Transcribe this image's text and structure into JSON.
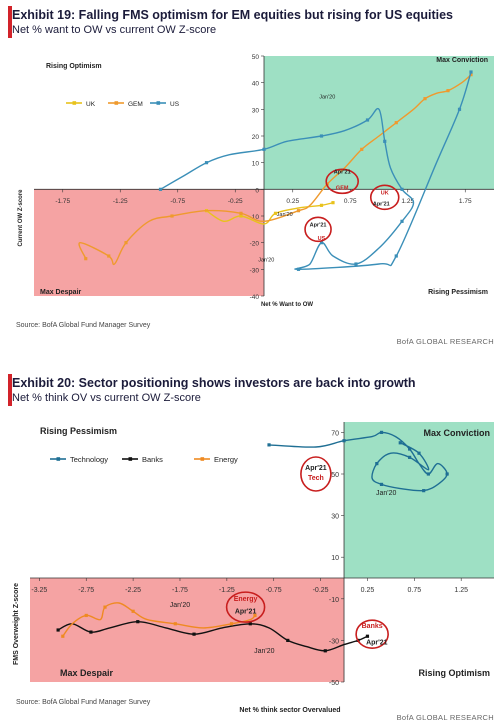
{
  "exhibit1": {
    "title": "Exhibit 19: Falling FMS optimism for EM equities but rising for US equities",
    "subtitle": "Net % want to OW vs current OW Z-score",
    "source": "Source:  BofA Global Fund Manager Survey",
    "brand": "BofA GLOBAL RESEARCH",
    "quadrants": {
      "top_left": "Rising Optimism",
      "top_right": "Max Conviction",
      "bottom_left": "Max Despair",
      "bottom_right": "Rising Pessimism"
    },
    "colors": {
      "green": "#9ee0c4",
      "red": "#f5a3a3",
      "uk": "#e8c21c",
      "gem": "#ef9a2e",
      "us": "#3b8fb8"
    },
    "chart_data": {
      "type": "line",
      "xlabel": "Net % Want to OW",
      "ylabel": "Current OW Z-score",
      "xlim": [
        -2.0,
        2.0
      ],
      "ylim": [
        -40,
        50
      ],
      "x_ticks": [
        -1.75,
        -1.25,
        -0.75,
        -0.25,
        0.25,
        0.75,
        1.25,
        1.75
      ],
      "x_tick_labels": [
        "-1.75",
        "-1.25",
        "-0.75",
        "-0.25",
        "0.25",
        "0.75",
        "1.25",
        "1.75"
      ],
      "y_ticks": [
        -40,
        -30,
        -20,
        -10,
        0,
        10,
        20,
        30,
        40,
        50
      ],
      "y_tick_labels": [
        "-40",
        "-30",
        "-20",
        "-10",
        "0",
        "10",
        "20",
        "30",
        "40",
        "50"
      ],
      "legend": [
        "UK",
        "GEM",
        "US"
      ],
      "series": [
        {
          "name": "UK",
          "color": "#e8c21c",
          "x": [
            -0.5,
            -0.35,
            -0.2,
            0.0,
            0.1,
            0.3,
            0.5,
            0.6
          ],
          "y": [
            -8,
            -12,
            -10,
            -13,
            -9,
            -7,
            -6,
            -5
          ]
        },
        {
          "name": "GEM",
          "color": "#ef9a2e",
          "x": [
            -1.55,
            -1.6,
            -1.35,
            -1.3,
            -1.2,
            -1.0,
            -0.8,
            -0.5,
            -0.2,
            0.0,
            0.3,
            0.4,
            0.55,
            0.7,
            0.85,
            1.0,
            1.15,
            1.3,
            1.4,
            1.5,
            1.6,
            1.72,
            1.8
          ],
          "y": [
            -26,
            -20,
            -25,
            -28,
            -20,
            -12,
            -10,
            -8,
            -9,
            -12,
            -8,
            -6,
            2,
            8,
            15,
            20,
            25,
            30,
            34,
            36,
            37,
            40,
            43
          ]
        },
        {
          "name": "US",
          "color": "#3b8fb8",
          "x": [
            -0.9,
            -0.7,
            -0.5,
            -0.3,
            0.0,
            0.2,
            0.5,
            0.7,
            0.9,
            1.0,
            1.05,
            1.1,
            1.2,
            1.3,
            1.2,
            1.0,
            0.8,
            0.6,
            0.5,
            0.4,
            0.3,
            1.0,
            1.15,
            1.5,
            1.7,
            1.8
          ],
          "y": [
            0,
            5,
            10,
            13,
            15,
            18,
            20,
            22,
            26,
            30,
            18,
            8,
            0,
            -5,
            -12,
            -22,
            -28,
            -25,
            -20,
            -28,
            -30,
            -28,
            -25,
            10,
            30,
            44
          ]
        }
      ],
      "annotations": [
        {
          "text": "Jan'20",
          "x": 0.55,
          "y": 34
        },
        {
          "text": "Apr'21",
          "x": 0.68,
          "y": 6
        },
        {
          "text": "GEM",
          "x": 0.68,
          "y": 0
        },
        {
          "text": "Jan'20",
          "x": 0.18,
          "y": -10
        },
        {
          "text": "Apr'21",
          "x": 0.47,
          "y": -14
        },
        {
          "text": "US",
          "x": 0.5,
          "y": -19
        },
        {
          "text": "UK",
          "x": 1.05,
          "y": -2
        },
        {
          "text": "Apr'21",
          "x": 1.02,
          "y": -6
        },
        {
          "text": "Jan'20",
          "x": 0.02,
          "y": -27
        }
      ]
    }
  },
  "exhibit2": {
    "title": "Exhibit 20: Sector positioning shows investors are back into growth",
    "subtitle": "Net % think OV vs current OW Z-score",
    "source": "Source:  BofA Global Fund Manager Survey",
    "brand": "BofA GLOBAL RESEARCH",
    "quadrants": {
      "top_left": "Rising Pessimism",
      "top_right": "Max Conviction",
      "bottom_left": "Max Despair",
      "bottom_right": "Rising Optimism"
    },
    "colors": {
      "green": "#9ee0c4",
      "red": "#f5a3a3",
      "technology": "#1f6f94",
      "banks": "#111111",
      "energy": "#ef8a22"
    },
    "chart_data": {
      "type": "line",
      "xlabel": "Net % think sector Overvalued",
      "ylabel": "FMS Overweight Z-score",
      "xlim": [
        -3.35,
        1.6
      ],
      "ylim": [
        -50,
        75
      ],
      "x_ticks": [
        -3.25,
        -2.75,
        -2.25,
        -1.75,
        -1.25,
        -0.75,
        -0.25,
        0.25,
        0.75,
        1.25
      ],
      "x_tick_labels": [
        "-3.25",
        "-2.75",
        "-2.25",
        "-1.75",
        "-1.25",
        "-0.75",
        "-0.25",
        "0.25",
        "0.75",
        "1.25"
      ],
      "y_ticks": [
        -50,
        -30,
        -10,
        10,
        30,
        50,
        70
      ],
      "y_tick_labels": [
        "-50",
        "-30",
        "-10",
        "10",
        "30",
        "50",
        "70"
      ],
      "legend": [
        "Technology",
        "Banks",
        "Energy"
      ],
      "series": [
        {
          "name": "Technology",
          "color": "#1f6f94",
          "x": [
            -0.8,
            -0.3,
            0.0,
            0.3,
            0.4,
            0.55,
            0.7,
            0.8,
            0.9,
            1.0,
            1.1,
            1.0,
            0.85,
            0.6,
            0.4,
            0.3,
            0.35,
            0.5,
            0.7,
            0.9,
            0.8,
            0.6
          ],
          "y": [
            64,
            63,
            66,
            68,
            70,
            68,
            62,
            55,
            50,
            55,
            50,
            45,
            42,
            43,
            45,
            48,
            55,
            60,
            58,
            52,
            60,
            65
          ]
        },
        {
          "name": "Banks",
          "color": "#111111",
          "x": [
            -3.05,
            -2.9,
            -2.7,
            -2.5,
            -2.2,
            -1.9,
            -1.6,
            -1.3,
            -1.0,
            -0.8,
            -0.6,
            -0.4,
            -0.2,
            0.0,
            0.15,
            0.25
          ],
          "y": [
            -25,
            -22,
            -26,
            -24,
            -21,
            -24,
            -27,
            -24,
            -22,
            -24,
            -30,
            -33,
            -35,
            -32,
            -30,
            -28
          ]
        },
        {
          "name": "Energy",
          "color": "#ef8a22",
          "x": [
            -3.0,
            -2.9,
            -2.75,
            -2.6,
            -2.55,
            -2.4,
            -2.25,
            -2.1,
            -1.8,
            -1.5,
            -1.2,
            -1.0,
            -0.95
          ],
          "y": [
            -28,
            -22,
            -18,
            -20,
            -14,
            -12,
            -16,
            -20,
            -22,
            -24,
            -22,
            -20,
            -18
          ]
        }
      ],
      "annotations": [
        {
          "text": "Apr'21",
          "x": -0.3,
          "y": 52
        },
        {
          "text": "Tech",
          "x": -0.3,
          "y": 47
        },
        {
          "text": "Jan'20",
          "x": 0.45,
          "y": 40
        },
        {
          "text": "Jan'20",
          "x": -1.75,
          "y": -14
        },
        {
          "text": "Energy",
          "x": -1.05,
          "y": -11
        },
        {
          "text": "Apr'21",
          "x": -1.05,
          "y": -17
        },
        {
          "text": "Jan'20",
          "x": -0.85,
          "y": -36
        },
        {
          "text": "Banks",
          "x": 0.3,
          "y": -24
        },
        {
          "text": "Apr'21",
          "x": 0.35,
          "y": -32
        }
      ]
    }
  }
}
